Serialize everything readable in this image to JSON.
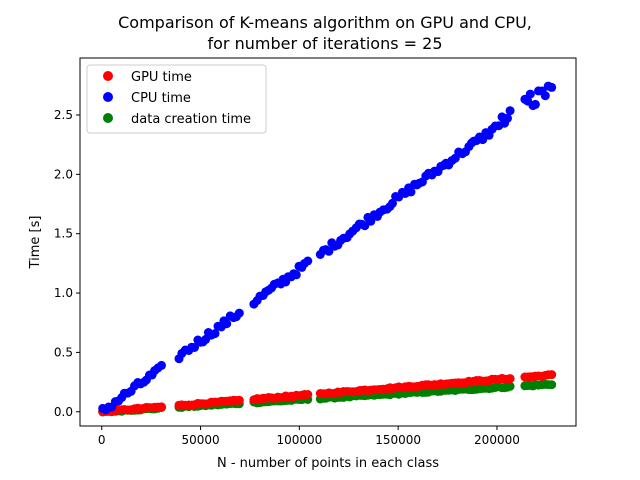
{
  "chart_data": {
    "type": "scatter",
    "title_line1": "Comparison of K-means algorithm on GPU and CPU,",
    "title_line2": "for number of iterations = 25",
    "xlabel": "N - number of points in each class",
    "ylabel": "Time [s]",
    "xlim": [
      -11000,
      240000
    ],
    "ylim": [
      -0.12,
      2.98
    ],
    "xticks": [
      0,
      50000,
      100000,
      150000,
      200000
    ],
    "xtick_labels": [
      "0",
      "50000",
      "100000",
      "150000",
      "200000"
    ],
    "yticks": [
      0.0,
      0.5,
      1.0,
      1.5,
      2.0,
      2.5
    ],
    "ytick_labels": [
      "0.0",
      "0.5",
      "1.0",
      "1.5",
      "2.0",
      "2.5"
    ],
    "legend_position": "upper-left",
    "grid": false,
    "x_range": [
      500,
      228000
    ],
    "series": [
      {
        "name": "GPU time",
        "color": "#ff0000",
        "slope_per_point": 1.36e-06,
        "note_points": [
          [
            0,
            0.0
          ],
          [
            50000,
            0.06
          ],
          [
            100000,
            0.13
          ],
          [
            150000,
            0.2
          ],
          [
            200000,
            0.27
          ],
          [
            228000,
            0.31
          ]
        ]
      },
      {
        "name": "CPU time",
        "color": "#0000ff",
        "slope_per_point": 1.2e-05,
        "note_points": [
          [
            0,
            0.0
          ],
          [
            50000,
            0.6
          ],
          [
            100000,
            1.2
          ],
          [
            150000,
            1.8
          ],
          [
            200000,
            2.4
          ],
          [
            228000,
            2.78
          ]
        ]
      },
      {
        "name": "data creation time",
        "color": "#008000",
        "slope_per_point": 1.02e-06,
        "note_points": [
          [
            0,
            0.0
          ],
          [
            50000,
            0.05
          ],
          [
            100000,
            0.1
          ],
          [
            150000,
            0.15
          ],
          [
            200000,
            0.2
          ],
          [
            228000,
            0.23
          ]
        ]
      }
    ]
  }
}
